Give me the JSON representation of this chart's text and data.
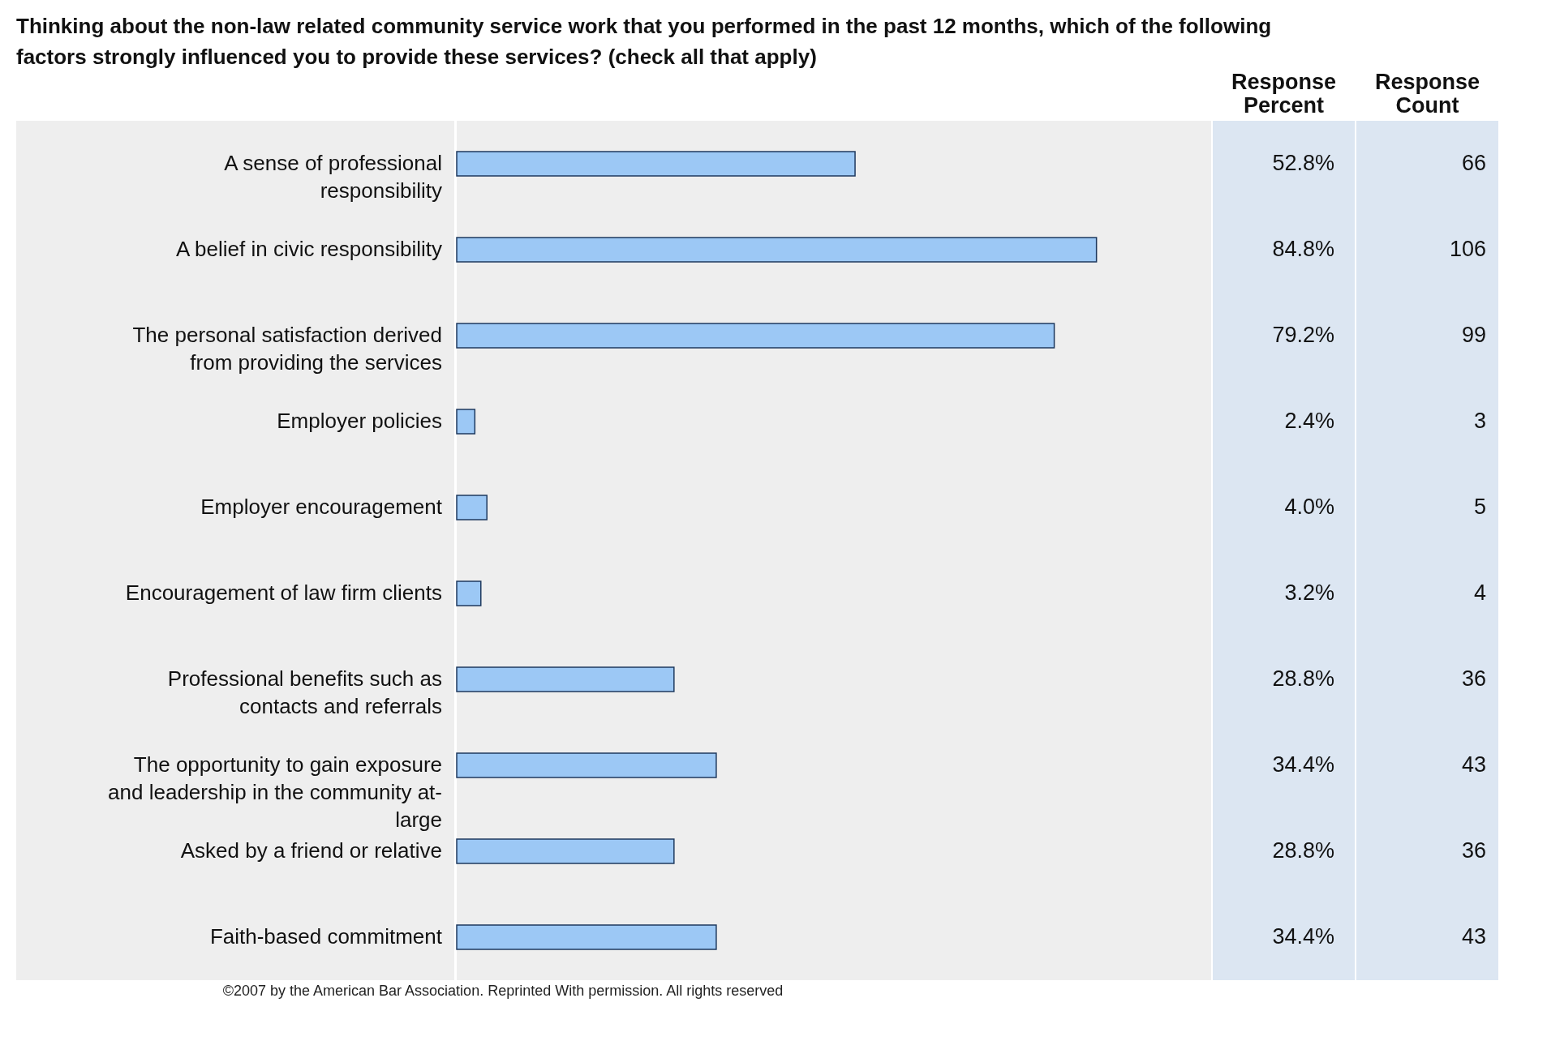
{
  "chart_data": {
    "type": "bar",
    "orientation": "horizontal",
    "title": "Thinking about the non-law related community service work that you performed in the past 12 months, which of the following factors strongly influenced you to provide these services? (check all that apply)",
    "categories": [
      "A sense of professional responsibility",
      "A belief in civic responsibility",
      "The personal satisfaction derived from providing the services",
      "Employer policies",
      "Employer encouragement",
      "Encouragement of law firm clients",
      "Professional benefits such as contacts and referrals",
      "The opportunity to gain exposure and leadership in the community at-large",
      "Asked by a friend or relative",
      "Faith-based commitment"
    ],
    "values": [
      52.8,
      84.8,
      79.2,
      2.4,
      4.0,
      3.2,
      28.8,
      34.4,
      28.8,
      34.4
    ],
    "value_labels": [
      "52.8%",
      "84.8%",
      "79.2%",
      "2.4%",
      "4.0%",
      "3.2%",
      "28.8%",
      "34.4%",
      "28.8%",
      "34.4%"
    ],
    "color": "#9cc8f5",
    "xlim": [
      0,
      100
    ],
    "annotations": [
      "Response Percent",
      "Response Count",
      "©2007 by the American Bar Association. Reprinted With permission. All rights reserved",
      "66",
      "106",
      "99",
      "3",
      "5",
      "4",
      "36",
      "43",
      "36",
      "43"
    ]
  }
}
